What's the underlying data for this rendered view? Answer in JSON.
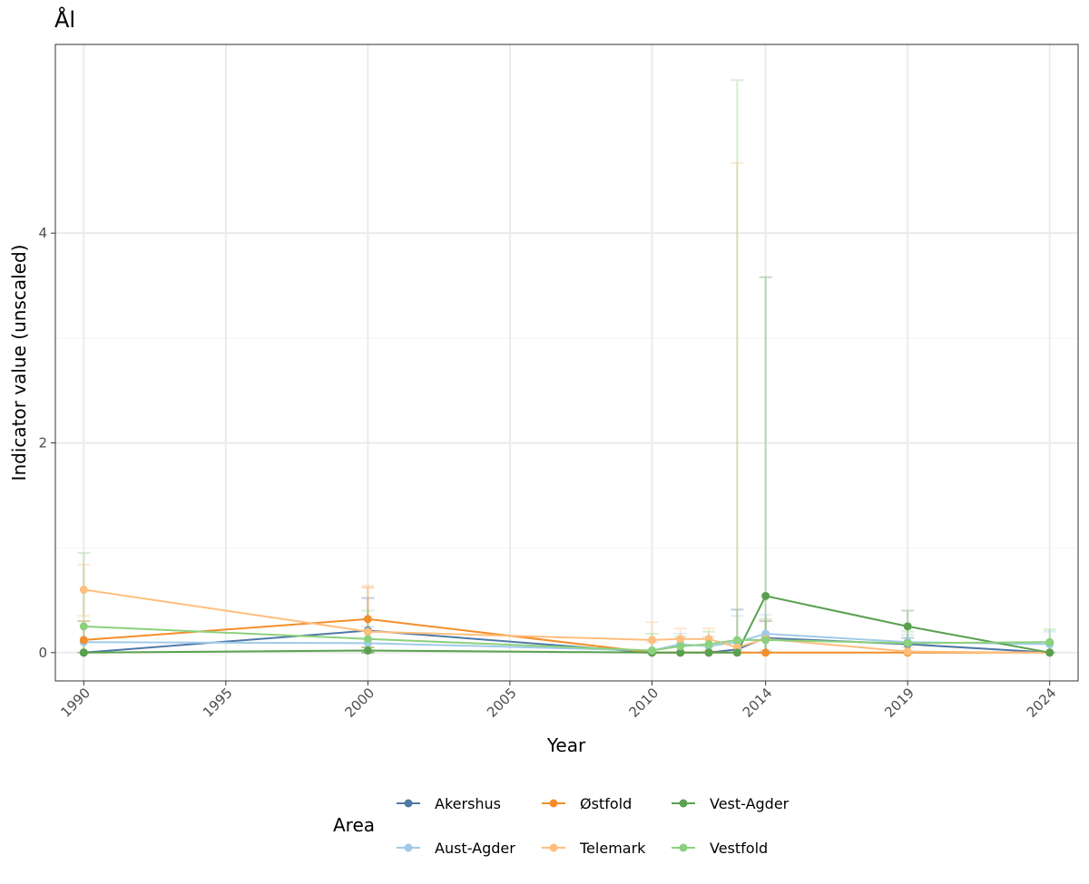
{
  "chart_data": {
    "type": "line",
    "title": "Ål",
    "xlabel": "Year",
    "ylabel": "Indicator value (unscaled)",
    "x_ticks": [
      1990,
      1995,
      2000,
      2005,
      2010,
      2014,
      2019,
      2024
    ],
    "y_ticks": [
      0,
      2,
      4
    ],
    "xlim": [
      1989.0,
      2025.0
    ],
    "ylim": [
      -0.27,
      5.8
    ],
    "grid": true,
    "legend": {
      "title": "Area",
      "placement": "bottom"
    },
    "series": [
      {
        "name": "Akershus",
        "color": "#4e79a7",
        "points": [
          {
            "x": 1990,
            "y": 0.0,
            "lo": 0.0,
            "hi": 0.0
          },
          {
            "x": 2000,
            "y": 0.21,
            "lo": 0.0,
            "hi": 0.52
          },
          {
            "x": 2010,
            "y": 0.0,
            "lo": 0.0,
            "hi": 0.0
          },
          {
            "x": 2011,
            "y": 0.0,
            "lo": 0.0,
            "hi": 0.0
          },
          {
            "x": 2012,
            "y": 0.0,
            "lo": 0.0,
            "hi": 0.0
          },
          {
            "x": 2013,
            "y": 0.03,
            "lo": 0.0,
            "hi": 0.41
          },
          {
            "x": 2014,
            "y": 0.14,
            "lo": 0.0,
            "hi": 0.3
          },
          {
            "x": 2019,
            "y": 0.08,
            "lo": 0.0,
            "hi": 0.14
          },
          {
            "x": 2024,
            "y": 0.0,
            "lo": 0.0,
            "hi": 0.0
          }
        ]
      },
      {
        "name": "Aust-Agder",
        "color": "#a0cbe8",
        "points": [
          {
            "x": 1990,
            "y": 0.1,
            "lo": 0.0,
            "hi": 0.3
          },
          {
            "x": 2000,
            "y": 0.09,
            "lo": 0.0,
            "hi": 0.25
          },
          {
            "x": 2010,
            "y": 0.02,
            "lo": 0.0,
            "hi": 0.1
          },
          {
            "x": 2011,
            "y": 0.08,
            "lo": 0.0,
            "hi": 0.18
          },
          {
            "x": 2012,
            "y": 0.06,
            "lo": 0.0,
            "hi": 0.15
          },
          {
            "x": 2013,
            "y": 0.1,
            "lo": 0.0,
            "hi": 0.35
          },
          {
            "x": 2014,
            "y": 0.18,
            "lo": 0.02,
            "hi": 0.36
          },
          {
            "x": 2019,
            "y": 0.1,
            "lo": 0.02,
            "hi": 0.17
          },
          {
            "x": 2024,
            "y": 0.08,
            "lo": 0.0,
            "hi": 0.2
          }
        ]
      },
      {
        "name": "Østfold",
        "color": "#f28e2b",
        "points": [
          {
            "x": 1990,
            "y": 0.12,
            "lo": 0.0,
            "hi": 0.3
          },
          {
            "x": 2000,
            "y": 0.32,
            "lo": 0.05,
            "hi": 0.62
          },
          {
            "x": 2010,
            "y": 0.0,
            "lo": 0.0,
            "hi": 0.0
          },
          {
            "x": 2011,
            "y": 0.0,
            "lo": 0.0,
            "hi": 0.0
          },
          {
            "x": 2012,
            "y": 0.0,
            "lo": 0.0,
            "hi": 0.0
          },
          {
            "x": 2013,
            "y": 0.0,
            "lo": 0.0,
            "hi": 0.0
          },
          {
            "x": 2014,
            "y": 0.0,
            "lo": 0.0,
            "hi": 0.0
          },
          {
            "x": 2019,
            "y": 0.0,
            "lo": 0.0,
            "hi": 0.0
          },
          {
            "x": 2024,
            "y": 0.0,
            "lo": 0.0,
            "hi": 0.0
          }
        ]
      },
      {
        "name": "Telemark",
        "color": "#ffbe7d",
        "points": [
          {
            "x": 1990,
            "y": 0.6,
            "lo": 0.35,
            "hi": 0.84
          },
          {
            "x": 2000,
            "y": 0.2,
            "lo": 0.0,
            "hi": 0.64
          },
          {
            "x": 2010,
            "y": 0.12,
            "lo": 0.0,
            "hi": 0.29
          },
          {
            "x": 2011,
            "y": 0.13,
            "lo": 0.0,
            "hi": 0.23
          },
          {
            "x": 2012,
            "y": 0.13,
            "lo": 0.02,
            "hi": 0.23
          },
          {
            "x": 2013,
            "y": 0.05,
            "lo": 0.0,
            "hi": 4.67
          },
          {
            "x": 2014,
            "y": 0.13,
            "lo": 0.0,
            "hi": 0.3
          },
          {
            "x": 2019,
            "y": 0.01,
            "lo": 0.0,
            "hi": 0.05
          },
          {
            "x": 2024,
            "y": 0.0,
            "lo": 0.0,
            "hi": 0.0
          }
        ]
      },
      {
        "name": "Vest-Agder",
        "color": "#59a14f",
        "points": [
          {
            "x": 1990,
            "y": 0.0,
            "lo": 0.0,
            "hi": 0.0
          },
          {
            "x": 2000,
            "y": 0.02,
            "lo": 0.0,
            "hi": 0.05
          },
          {
            "x": 2010,
            "y": 0.0,
            "lo": 0.0,
            "hi": 0.0
          },
          {
            "x": 2011,
            "y": 0.0,
            "lo": 0.0,
            "hi": 0.0
          },
          {
            "x": 2012,
            "y": 0.0,
            "lo": 0.0,
            "hi": 0.0
          },
          {
            "x": 2013,
            "y": 0.0,
            "lo": 0.0,
            "hi": 0.0
          },
          {
            "x": 2014,
            "y": 0.54,
            "lo": 0.0,
            "hi": 3.58
          },
          {
            "x": 2019,
            "y": 0.25,
            "lo": 0.1,
            "hi": 0.4
          },
          {
            "x": 2024,
            "y": 0.0,
            "lo": 0.0,
            "hi": 0.0
          }
        ]
      },
      {
        "name": "Vestfold",
        "color": "#8cd17d",
        "points": [
          {
            "x": 1990,
            "y": 0.25,
            "lo": 0.0,
            "hi": 0.95
          },
          {
            "x": 2000,
            "y": 0.13,
            "lo": 0.0,
            "hi": 0.4
          },
          {
            "x": 2010,
            "y": 0.02,
            "lo": 0.0,
            "hi": 0.18
          },
          {
            "x": 2011,
            "y": 0.06,
            "lo": 0.0,
            "hi": 0.15
          },
          {
            "x": 2012,
            "y": 0.08,
            "lo": 0.0,
            "hi": 0.2
          },
          {
            "x": 2013,
            "y": 0.12,
            "lo": 0.0,
            "hi": 5.46
          },
          {
            "x": 2014,
            "y": 0.12,
            "lo": 0.0,
            "hi": 0.32
          },
          {
            "x": 2019,
            "y": 0.09,
            "lo": 0.0,
            "hi": 0.2
          },
          {
            "x": 2024,
            "y": 0.1,
            "lo": 0.0,
            "hi": 0.22
          }
        ]
      }
    ]
  }
}
